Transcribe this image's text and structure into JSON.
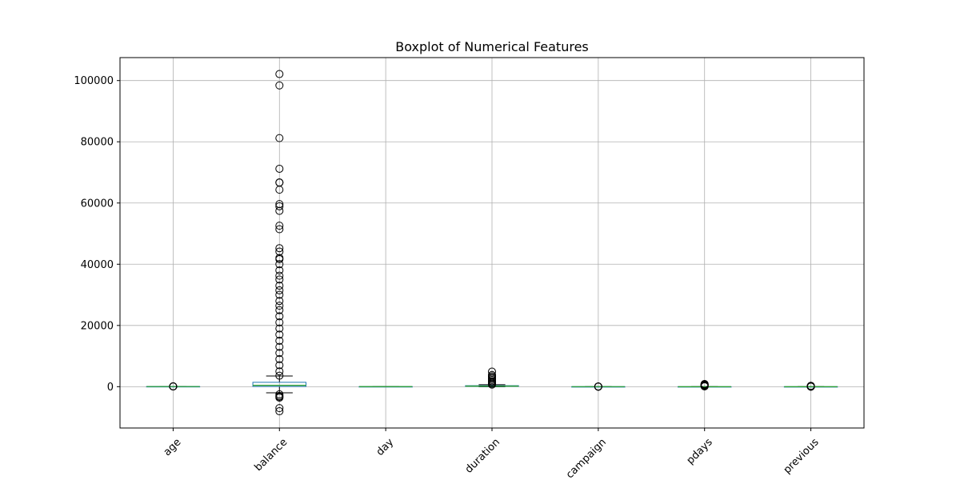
{
  "chart_data": {
    "type": "boxplot",
    "title": "Boxplot of Numerical Features",
    "xlabel": "",
    "ylabel": "",
    "ylim": [
      -13500,
      107500
    ],
    "yticks": [
      0,
      20000,
      40000,
      60000,
      80000,
      100000
    ],
    "ytick_labels": [
      "0",
      "20000",
      "40000",
      "60000",
      "80000",
      "100000"
    ],
    "grid": true,
    "categories": [
      "age",
      "balance",
      "day",
      "duration",
      "campaign",
      "pdays",
      "previous"
    ],
    "boxes": [
      {
        "name": "age",
        "q1": 33,
        "median": 39,
        "q3": 48,
        "whisker_low": 18,
        "whisker_high": 70,
        "outliers": [
          75,
          80,
          85,
          90,
          95
        ]
      },
      {
        "name": "balance",
        "q1": 72,
        "median": 448,
        "q3": 1428,
        "whisker_low": -2000,
        "whisker_high": 3500,
        "outliers": [
          102127,
          98417,
          81204,
          71188,
          66721,
          66653,
          64343,
          59649,
          58932,
          57435,
          52587,
          51439,
          45248,
          44134,
          42045,
          41630,
          40000,
          38000,
          36252,
          35000,
          33000,
          31472,
          30000,
          28000,
          26452,
          25000,
          23000,
          21000,
          19000,
          17000,
          15000,
          13000,
          11000,
          9000,
          7000,
          5000,
          3600,
          -2500,
          -3000,
          -3300,
          -3600,
          -7000,
          -8019
        ]
      },
      {
        "name": "day",
        "q1": 8,
        "median": 16,
        "q3": 21,
        "whisker_low": 1,
        "whisker_high": 31,
        "outliers": []
      },
      {
        "name": "duration",
        "q1": 103,
        "median": 180,
        "q3": 319,
        "whisker_low": 0,
        "whisker_high": 643,
        "outliers": [
          700,
          1000,
          1400,
          1800,
          2200,
          2600,
          3000,
          3400,
          3800,
          4918
        ]
      },
      {
        "name": "campaign",
        "q1": 1,
        "median": 2,
        "q3": 3,
        "whisker_low": 1,
        "whisker_high": 6,
        "outliers": [
          10,
          20,
          30,
          40,
          50,
          63
        ]
      },
      {
        "name": "pdays",
        "q1": -1,
        "median": -1,
        "q3": -1,
        "whisker_low": -1,
        "whisker_high": -1,
        "outliers": [
          100,
          200,
          300,
          400,
          500,
          600,
          700,
          800,
          871
        ]
      },
      {
        "name": "previous",
        "q1": 0,
        "median": 0,
        "q3": 0,
        "whisker_low": 0,
        "whisker_high": 0,
        "outliers": [
          5,
          20,
          50,
          100,
          150,
          200,
          275
        ]
      }
    ]
  },
  "colors": {
    "box": "#1f77b4",
    "median": "#2ca02c",
    "grid": "#b0b0b0",
    "axis": "#000000",
    "flier": "#000000"
  }
}
